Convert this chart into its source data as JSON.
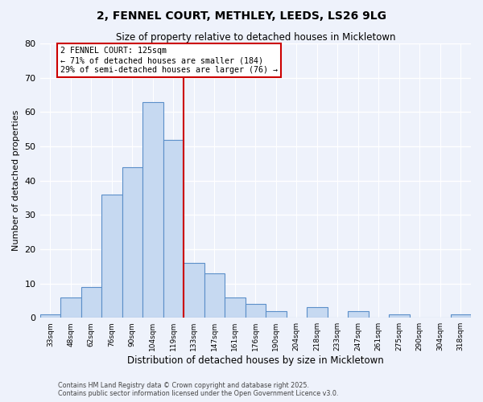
{
  "title": "2, FENNEL COURT, METHLEY, LEEDS, LS26 9LG",
  "subtitle": "Size of property relative to detached houses in Mickletown",
  "xlabel": "Distribution of detached houses by size in Mickletown",
  "ylabel": "Number of detached properties",
  "bar_labels": [
    "33sqm",
    "48sqm",
    "62sqm",
    "76sqm",
    "90sqm",
    "104sqm",
    "119sqm",
    "133sqm",
    "147sqm",
    "161sqm",
    "176sqm",
    "190sqm",
    "204sqm",
    "218sqm",
    "233sqm",
    "247sqm",
    "261sqm",
    "275sqm",
    "290sqm",
    "304sqm",
    "318sqm"
  ],
  "bar_values": [
    1,
    6,
    9,
    36,
    44,
    63,
    52,
    16,
    13,
    6,
    4,
    2,
    0,
    3,
    0,
    2,
    0,
    1,
    0,
    0,
    1
  ],
  "bar_color": "#c6d9f1",
  "bar_edge_color": "#5b8fc9",
  "background_color": "#eef2fb",
  "grid_color": "#ffffff",
  "vline_color": "#cc0000",
  "vline_pos": 6.5,
  "annotation_title": "2 FENNEL COURT: 125sqm",
  "annotation_line1": "← 71% of detached houses are smaller (184)",
  "annotation_line2": "29% of semi-detached houses are larger (76) →",
  "annotation_box_color": "#cc0000",
  "ylim": [
    0,
    80
  ],
  "yticks": [
    0,
    10,
    20,
    30,
    40,
    50,
    60,
    70,
    80
  ],
  "footnote1": "Contains HM Land Registry data © Crown copyright and database right 2025.",
  "footnote2": "Contains public sector information licensed under the Open Government Licence v3.0."
}
